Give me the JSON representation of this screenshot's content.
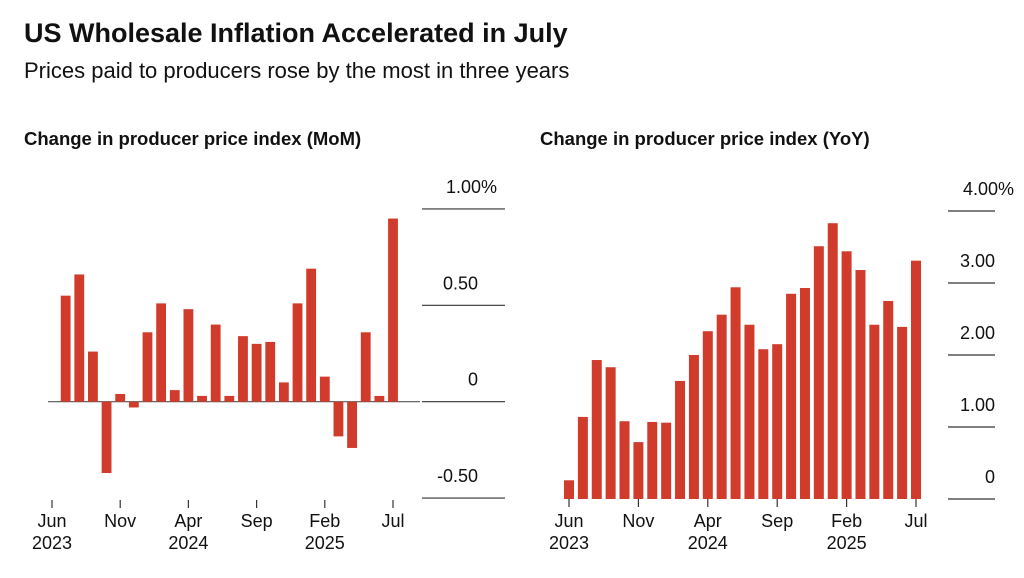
{
  "title": "US Wholesale Inflation Accelerated in July",
  "subtitle": "Prices paid to producers rose by the most in three years",
  "chart_data": [
    {
      "type": "bar",
      "title": "Change in producer price index (MoM)",
      "color": "#d03b2b",
      "categories": [
        "Jun\n2023",
        null,
        null,
        null,
        null,
        "Nov",
        null,
        null,
        null,
        null,
        "Apr\n2024",
        null,
        null,
        null,
        null,
        "Sep",
        null,
        null,
        null,
        null,
        "Feb\n2025",
        null,
        null,
        null,
        null,
        "Jul"
      ],
      "values": [
        0,
        0.55,
        0.66,
        0.26,
        -0.37,
        0.04,
        -0.03,
        0.36,
        0.51,
        0.06,
        0.48,
        0.03,
        0.4,
        0.03,
        0.34,
        0.3,
        0.31,
        0.1,
        0.51,
        0.69,
        0.13,
        -0.18,
        -0.24,
        0.36,
        0.03,
        0.95
      ],
      "ylim": [
        -0.51,
        1.15
      ],
      "yticks": [
        {
          "value": 1,
          "label": "1.00%"
        },
        {
          "value": 0.5,
          "label": "0.50"
        },
        0,
        {
          "value": -0.5,
          "label": "-0.50"
        }
      ]
    },
    {
      "type": "bar",
      "title": "Change in producer price index (YoY)",
      "color": "#d03b2b",
      "categories": [
        "Jun\n2023",
        null,
        null,
        null,
        null,
        "Nov",
        null,
        null,
        null,
        null,
        "Apr\n2024",
        null,
        null,
        null,
        null,
        "Sep",
        null,
        null,
        null,
        null,
        "Feb\n2025",
        null,
        null,
        null,
        null,
        "Jul"
      ],
      "values": [
        0.26,
        1.14,
        1.93,
        1.83,
        1.08,
        0.79,
        1.07,
        1.06,
        1.64,
        2.0,
        2.33,
        2.56,
        2.94,
        2.42,
        2.08,
        2.15,
        2.85,
        2.93,
        3.51,
        3.83,
        3.44,
        3.18,
        2.42,
        2.75,
        2.39,
        3.31
      ],
      "ylim": [
        0,
        4.43
      ],
      "yticks": [
        {
          "value": 4,
          "label": "4.00%"
        },
        {
          "value": 3,
          "label": "3.00"
        },
        {
          "value": 2,
          "label": "2.00"
        },
        {
          "value": 1,
          "label": "1.00"
        },
        0
      ]
    }
  ]
}
